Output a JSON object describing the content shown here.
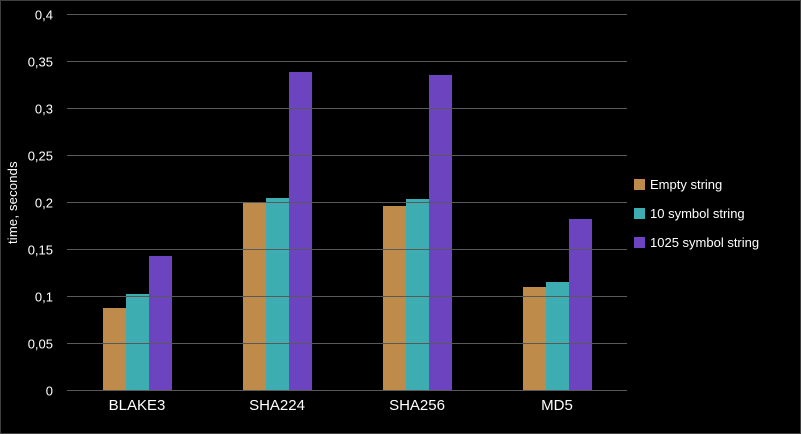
{
  "chart_data": {
    "type": "bar",
    "title": "",
    "xlabel": "",
    "ylabel": "time, seconds",
    "categories": [
      "BLAKE3",
      "SHA224",
      "SHA256",
      "MD5"
    ],
    "series": [
      {
        "name": "Empty string",
        "color": "#bf8b4b",
        "values": [
          0.088,
          0.2,
          0.197,
          0.111
        ]
      },
      {
        "name": "10 symbol string",
        "color": "#3dadb2",
        "values": [
          0.103,
          0.205,
          0.204,
          0.116
        ]
      },
      {
        "name": "1025 symbol string",
        "color": "#6c44c0",
        "values": [
          0.144,
          0.339,
          0.336,
          0.183
        ]
      }
    ],
    "ylim": [
      0,
      0.4
    ],
    "ytick_step": 0.05,
    "ytick_labels": [
      "0",
      "0,05",
      "0,1",
      "0,15",
      "0,2",
      "0,25",
      "0,3",
      "0,35",
      "0,4"
    ],
    "grid": true,
    "legend_position": "right",
    "colors": {
      "background": "#000000",
      "gridline": "#595959",
      "text": "#ffffff"
    }
  }
}
